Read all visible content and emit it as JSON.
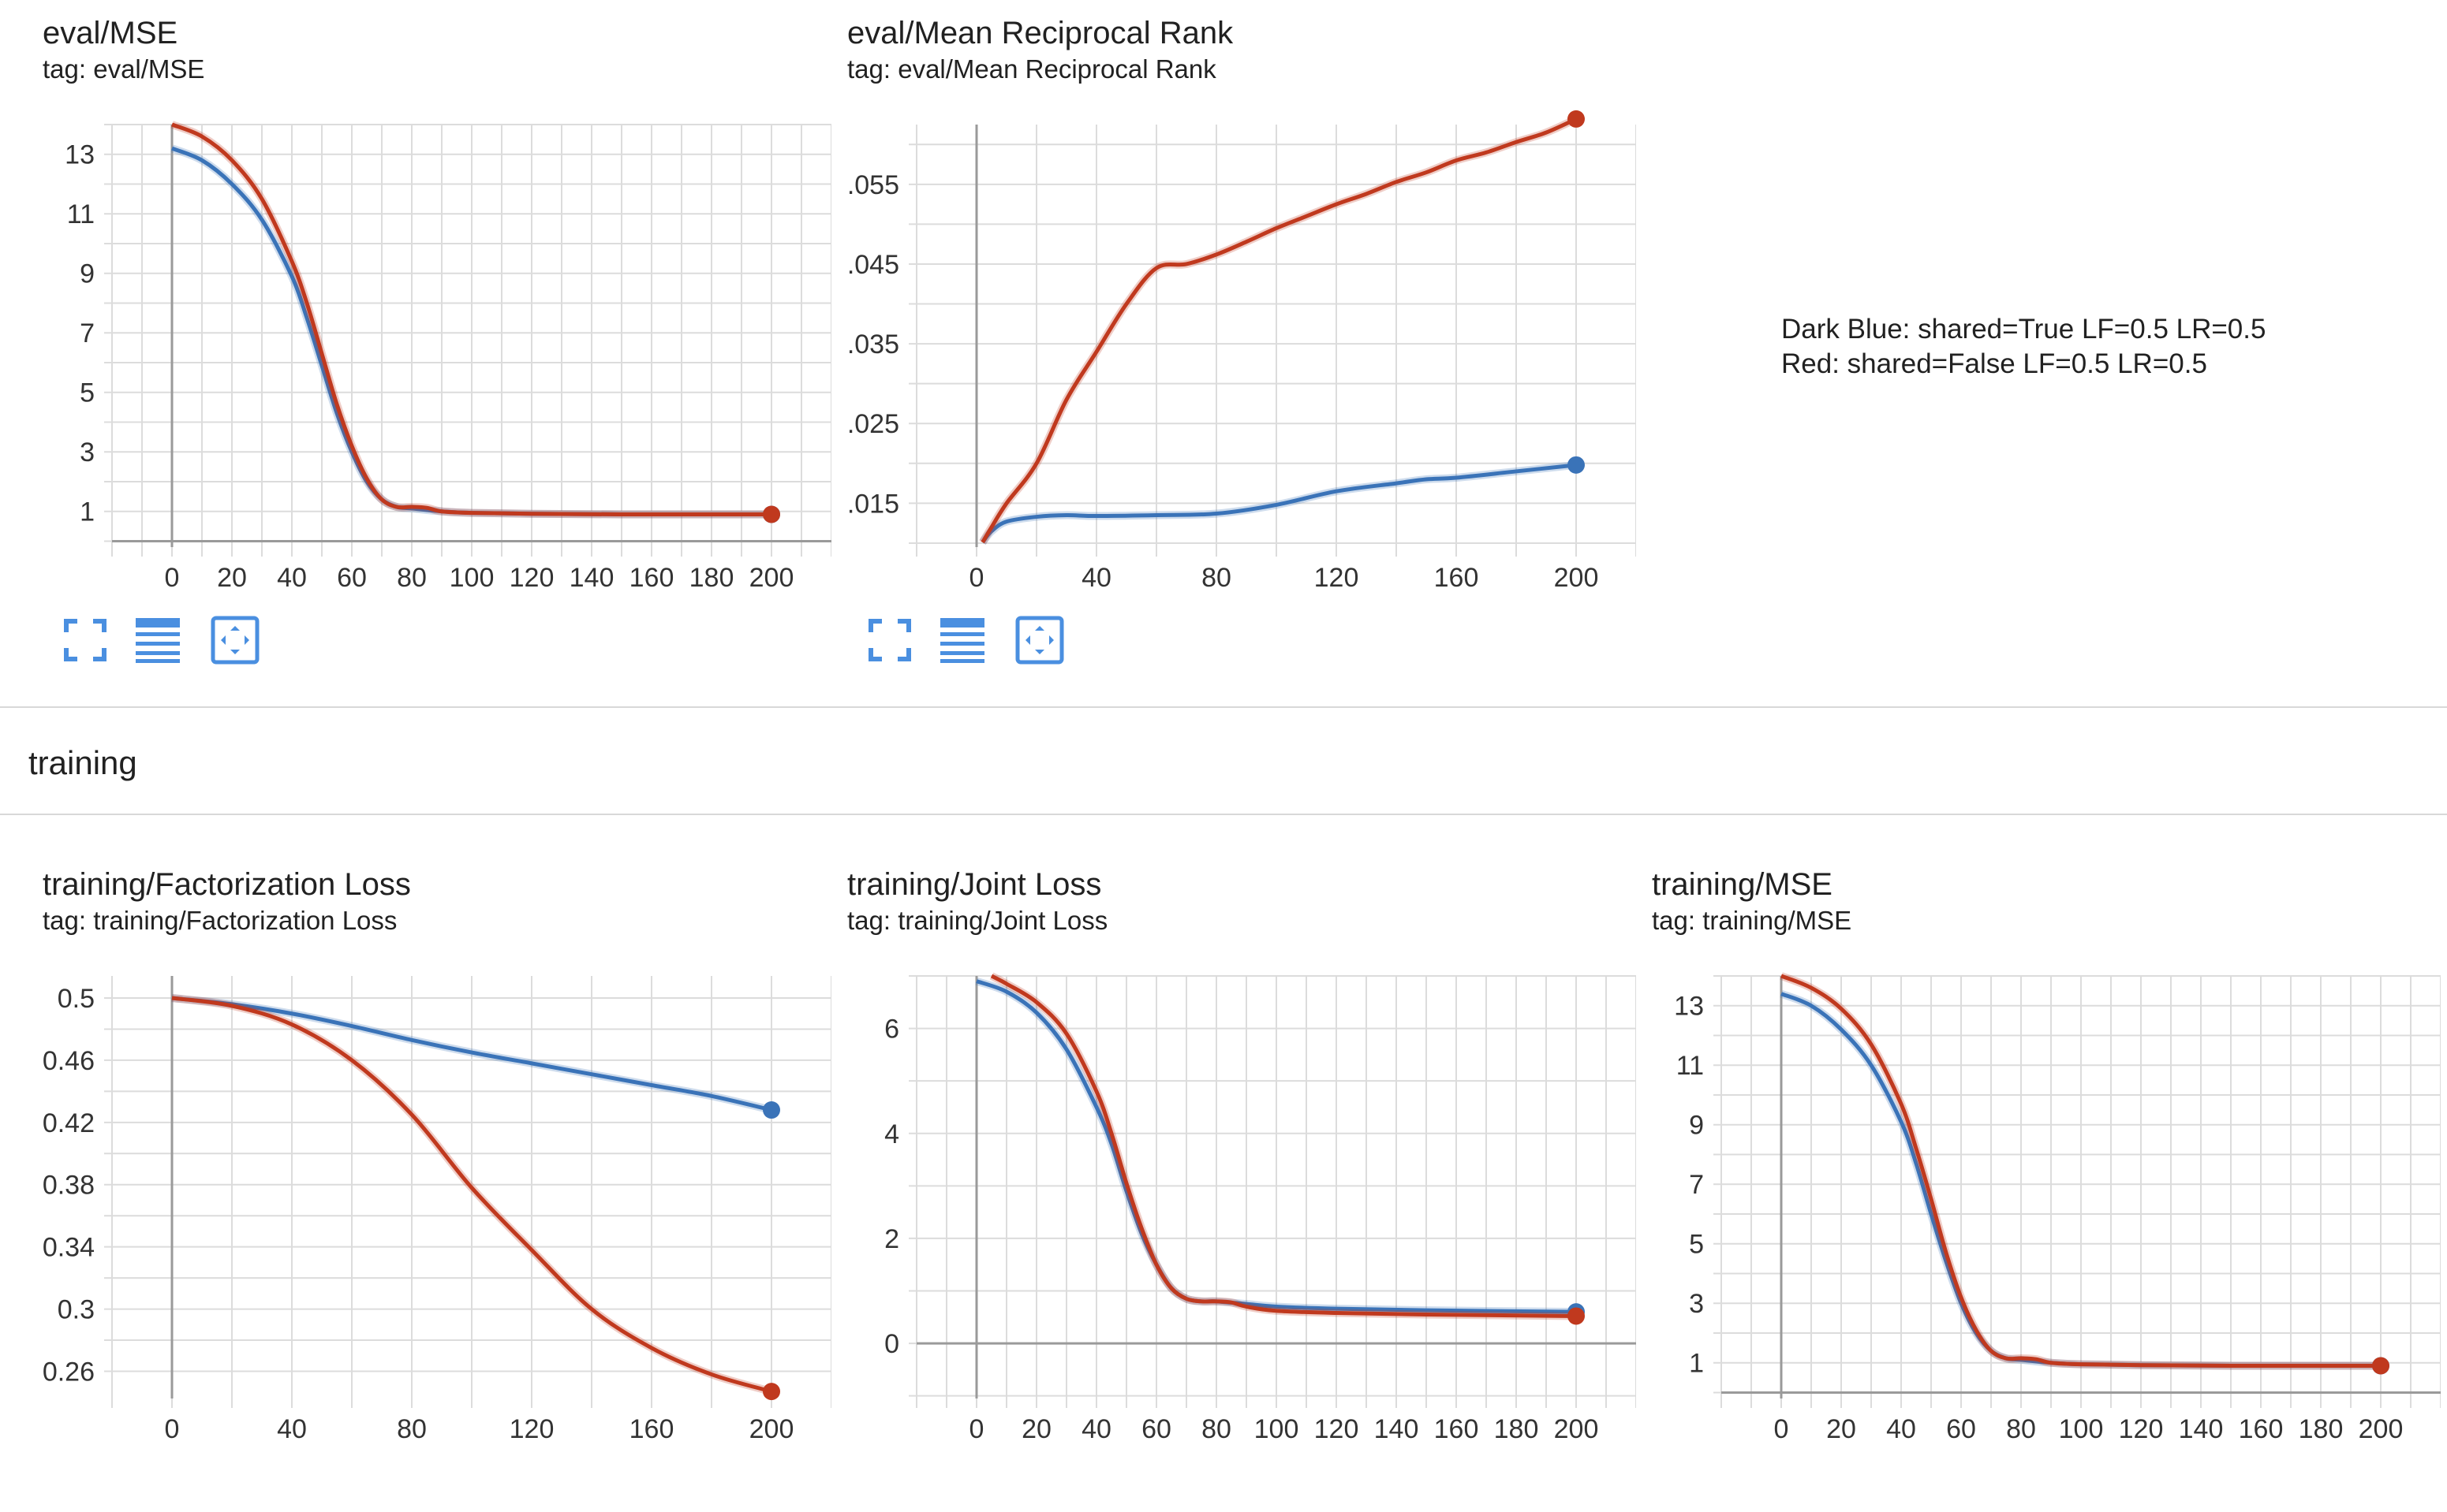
{
  "legend_note": {
    "lines": [
      "Dark Blue: shared=True LF=0.5 LR=0.5",
      "Red: shared=False LF=0.5 LR=0.5"
    ]
  },
  "section": {
    "title": "training"
  },
  "colors": {
    "blue": "#3a73b8",
    "red": "#c0391e",
    "grid": "#dcdcdc",
    "axis": "#9a9a9a",
    "icon": "#4a8fe0"
  },
  "toolbar_icons": [
    "fullscreen-icon",
    "data-table-icon",
    "fit-domain-icon"
  ],
  "chart_data": [
    {
      "id": "eval-mse",
      "title": "eval/MSE",
      "tag": "tag: eval/MSE",
      "type": "line",
      "xlim": [
        -20,
        220
      ],
      "ylim": [
        -0.2,
        14.0
      ],
      "xticks": [
        0,
        20,
        40,
        60,
        80,
        100,
        120,
        140,
        160,
        180,
        200
      ],
      "yticks": [
        1,
        3,
        5,
        7,
        9,
        11,
        13
      ],
      "series": [
        {
          "color": "blue",
          "x": [
            0,
            10,
            20,
            30,
            40,
            45,
            50,
            55,
            60,
            65,
            70,
            75,
            80,
            90,
            100,
            120,
            150,
            200
          ],
          "y": [
            13.2,
            12.8,
            12.0,
            10.8,
            8.9,
            7.5,
            5.9,
            4.3,
            3.0,
            2.0,
            1.4,
            1.15,
            1.1,
            1.0,
            0.95,
            0.92,
            0.9,
            0.9
          ]
        },
        {
          "color": "red",
          "x": [
            0,
            10,
            20,
            30,
            40,
            45,
            50,
            55,
            60,
            65,
            70,
            75,
            80,
            85,
            90,
            100,
            120,
            150,
            200
          ],
          "y": [
            14.0,
            13.6,
            12.8,
            11.5,
            9.4,
            8.0,
            6.3,
            4.6,
            3.2,
            2.1,
            1.4,
            1.15,
            1.15,
            1.12,
            1.0,
            0.95,
            0.92,
            0.9,
            0.9
          ]
        }
      ]
    },
    {
      "id": "eval-mrr",
      "title": "eval/Mean Reciprocal Rank",
      "tag": "tag: eval/Mean Reciprocal Rank",
      "type": "line",
      "xlim": [
        -20,
        220
      ],
      "ylim": [
        0.0095,
        0.0625
      ],
      "xticks": [
        0,
        40,
        80,
        120,
        160,
        200
      ],
      "yticks": [
        0.015,
        0.025,
        0.035,
        0.045,
        0.055
      ],
      "ytick_labels": [
        "0.015",
        "0.025",
        "0.035",
        "0.045",
        "0.055"
      ],
      "series": [
        {
          "color": "blue",
          "x": [
            2,
            5,
            10,
            20,
            30,
            40,
            60,
            80,
            100,
            120,
            140,
            150,
            160,
            180,
            200
          ],
          "y": [
            0.0101,
            0.0115,
            0.0127,
            0.0133,
            0.0135,
            0.0134,
            0.0135,
            0.0137,
            0.0148,
            0.0165,
            0.0175,
            0.018,
            0.0182,
            0.019,
            0.0198
          ]
        },
        {
          "color": "red",
          "x": [
            2,
            5,
            10,
            20,
            30,
            40,
            50,
            60,
            70,
            80,
            90,
            100,
            110,
            120,
            130,
            140,
            150,
            160,
            170,
            180,
            190,
            200
          ],
          "y": [
            0.0101,
            0.012,
            0.015,
            0.02,
            0.028,
            0.034,
            0.04,
            0.0445,
            0.045,
            0.0462,
            0.0478,
            0.0495,
            0.051,
            0.0525,
            0.0538,
            0.0553,
            0.0565,
            0.058,
            0.059,
            0.0603,
            0.0615,
            0.0632
          ]
        }
      ]
    },
    {
      "id": "training-factorization-loss",
      "title": "training/Factorization Loss",
      "tag": "tag: training/Factorization Loss",
      "type": "line",
      "xlim": [
        -20,
        220
      ],
      "ylim": [
        0.2425,
        0.5142
      ],
      "xticks": [
        0,
        40,
        80,
        120,
        160,
        200
      ],
      "yticks": [
        0.26,
        0.3,
        0.34,
        0.38,
        0.42,
        0.46,
        0.5
      ],
      "ytick_labels": [
        "0.26",
        "0.3",
        "0.34",
        "0.38",
        "0.42",
        "0.46",
        "0.5"
      ],
      "series": [
        {
          "color": "blue",
          "x": [
            0,
            20,
            40,
            60,
            80,
            100,
            120,
            140,
            160,
            180,
            200
          ],
          "y": [
            0.5,
            0.496,
            0.49,
            0.482,
            0.473,
            0.465,
            0.458,
            0.451,
            0.444,
            0.437,
            0.428
          ]
        },
        {
          "color": "red",
          "x": [
            0,
            20,
            40,
            60,
            80,
            100,
            120,
            140,
            160,
            180,
            200
          ],
          "y": [
            0.5,
            0.495,
            0.483,
            0.46,
            0.425,
            0.378,
            0.338,
            0.3,
            0.275,
            0.258,
            0.247
          ]
        }
      ]
    },
    {
      "id": "training-joint-loss",
      "title": "training/Joint Loss",
      "tag": "tag: training/Joint Loss",
      "type": "line",
      "xlim": [
        -20,
        220
      ],
      "ylim": [
        -1.05,
        7.0
      ],
      "xticks": [
        0,
        20,
        40,
        60,
        80,
        100,
        120,
        140,
        160,
        180,
        200
      ],
      "yticks": [
        0,
        2,
        4,
        6
      ],
      "series": [
        {
          "color": "blue",
          "x": [
            0,
            10,
            20,
            30,
            40,
            45,
            50,
            55,
            60,
            65,
            70,
            75,
            80,
            90,
            100,
            120,
            150,
            200
          ],
          "y": [
            6.9,
            6.7,
            6.3,
            5.6,
            4.5,
            3.8,
            2.9,
            2.1,
            1.5,
            1.05,
            0.85,
            0.8,
            0.8,
            0.75,
            0.7,
            0.66,
            0.63,
            0.6
          ]
        },
        {
          "color": "red",
          "x": [
            5,
            10,
            20,
            30,
            40,
            45,
            50,
            55,
            60,
            65,
            70,
            75,
            80,
            85,
            90,
            100,
            120,
            150,
            200
          ],
          "y": [
            7.0,
            6.85,
            6.5,
            5.9,
            4.8,
            4.0,
            3.05,
            2.2,
            1.5,
            1.05,
            0.85,
            0.8,
            0.8,
            0.78,
            0.7,
            0.62,
            0.58,
            0.55,
            0.52
          ]
        }
      ]
    },
    {
      "id": "training-mse",
      "title": "training/MSE",
      "tag": "tag: training/MSE",
      "type": "line",
      "xlim": [
        -20,
        220
      ],
      "ylim": [
        -0.2,
        14.0
      ],
      "xticks": [
        0,
        20,
        40,
        60,
        80,
        100,
        120,
        140,
        160,
        180,
        200
      ],
      "yticks": [
        1,
        3,
        5,
        7,
        9,
        11,
        13
      ],
      "series": [
        {
          "color": "blue",
          "x": [
            0,
            10,
            20,
            30,
            40,
            45,
            50,
            55,
            60,
            65,
            70,
            75,
            80,
            90,
            100,
            120,
            150,
            200
          ],
          "y": [
            13.4,
            13.0,
            12.2,
            11.0,
            9.1,
            7.7,
            6.0,
            4.4,
            3.0,
            2.0,
            1.4,
            1.15,
            1.1,
            1.0,
            0.95,
            0.92,
            0.9,
            0.9
          ]
        },
        {
          "color": "red",
          "x": [
            0,
            10,
            20,
            30,
            40,
            45,
            50,
            55,
            60,
            65,
            70,
            75,
            80,
            85,
            90,
            100,
            120,
            150,
            200
          ],
          "y": [
            14.0,
            13.6,
            12.9,
            11.7,
            9.7,
            8.2,
            6.5,
            4.7,
            3.2,
            2.1,
            1.4,
            1.15,
            1.15,
            1.12,
            1.0,
            0.95,
            0.92,
            0.9,
            0.9
          ]
        }
      ]
    }
  ]
}
